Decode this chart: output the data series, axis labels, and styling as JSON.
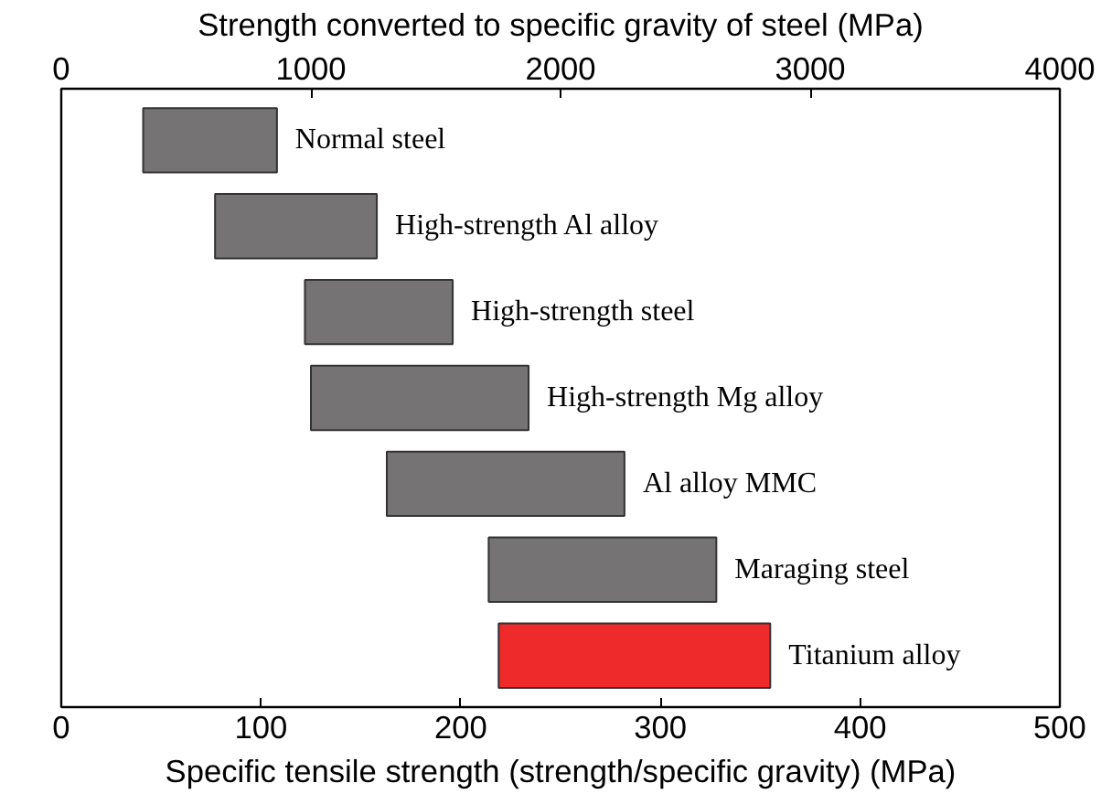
{
  "chart_data": {
    "type": "bar",
    "orientation": "horizontal",
    "categories": [
      "Normal steel",
      "High-strength Al alloy",
      "High-strength steel",
      "High-strength Mg alloy",
      "Al alloy MMC",
      "Maraging steel",
      "Titanium alloy"
    ],
    "base": [
      41,
      77,
      122,
      125,
      163,
      214,
      219
    ],
    "values": [
      67,
      81,
      74,
      109,
      119,
      114,
      136
    ],
    "colors": [
      "#757374",
      "#757374",
      "#757374",
      "#757374",
      "#757374",
      "#757374",
      "#ee2a2a"
    ],
    "xlim": [
      0,
      500
    ],
    "xticks": [
      0,
      100,
      200,
      300,
      400,
      500
    ],
    "x2lim": [
      0,
      4000
    ],
    "x2ticks": [
      0,
      1000,
      2000,
      3000,
      4000
    ],
    "xlabel": "Specific tensile strength (strength/specific gravity) (MPa)",
    "x2label": "Strength converted to specific gravity of steel (MPa)"
  }
}
